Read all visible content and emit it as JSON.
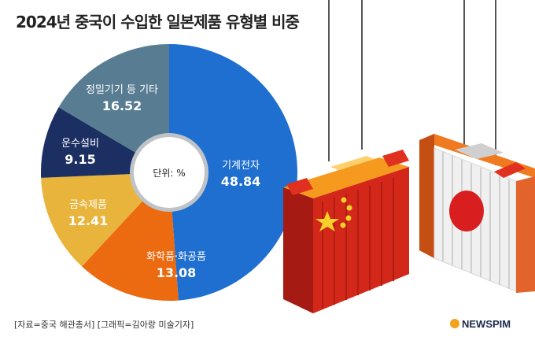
{
  "title": "2024년 중국이 수입한 일본제품 유형별 비중",
  "chart_data": {
    "type": "pie",
    "title": "2024년 중국이 수입한 일본제품 유형별 비중",
    "center_label": "단위: %",
    "series": [
      {
        "name": "기계전자",
        "value": 48.84,
        "color": "#1f6fd0"
      },
      {
        "name": "화학품·화공품",
        "value": 13.08,
        "color": "#ec6a10"
      },
      {
        "name": "금속제품",
        "value": 12.41,
        "color": "#e8b43b"
      },
      {
        "name": "운수설비",
        "value": 9.15,
        "color": "#1c2f63"
      },
      {
        "name": "정밀기기 등 기타",
        "value": 16.52,
        "color": "#587c92"
      }
    ]
  },
  "footer": "[자료=중국 해관총서] [그래픽=김아랑 미술기자]",
  "brand": "NEWSPIM"
}
